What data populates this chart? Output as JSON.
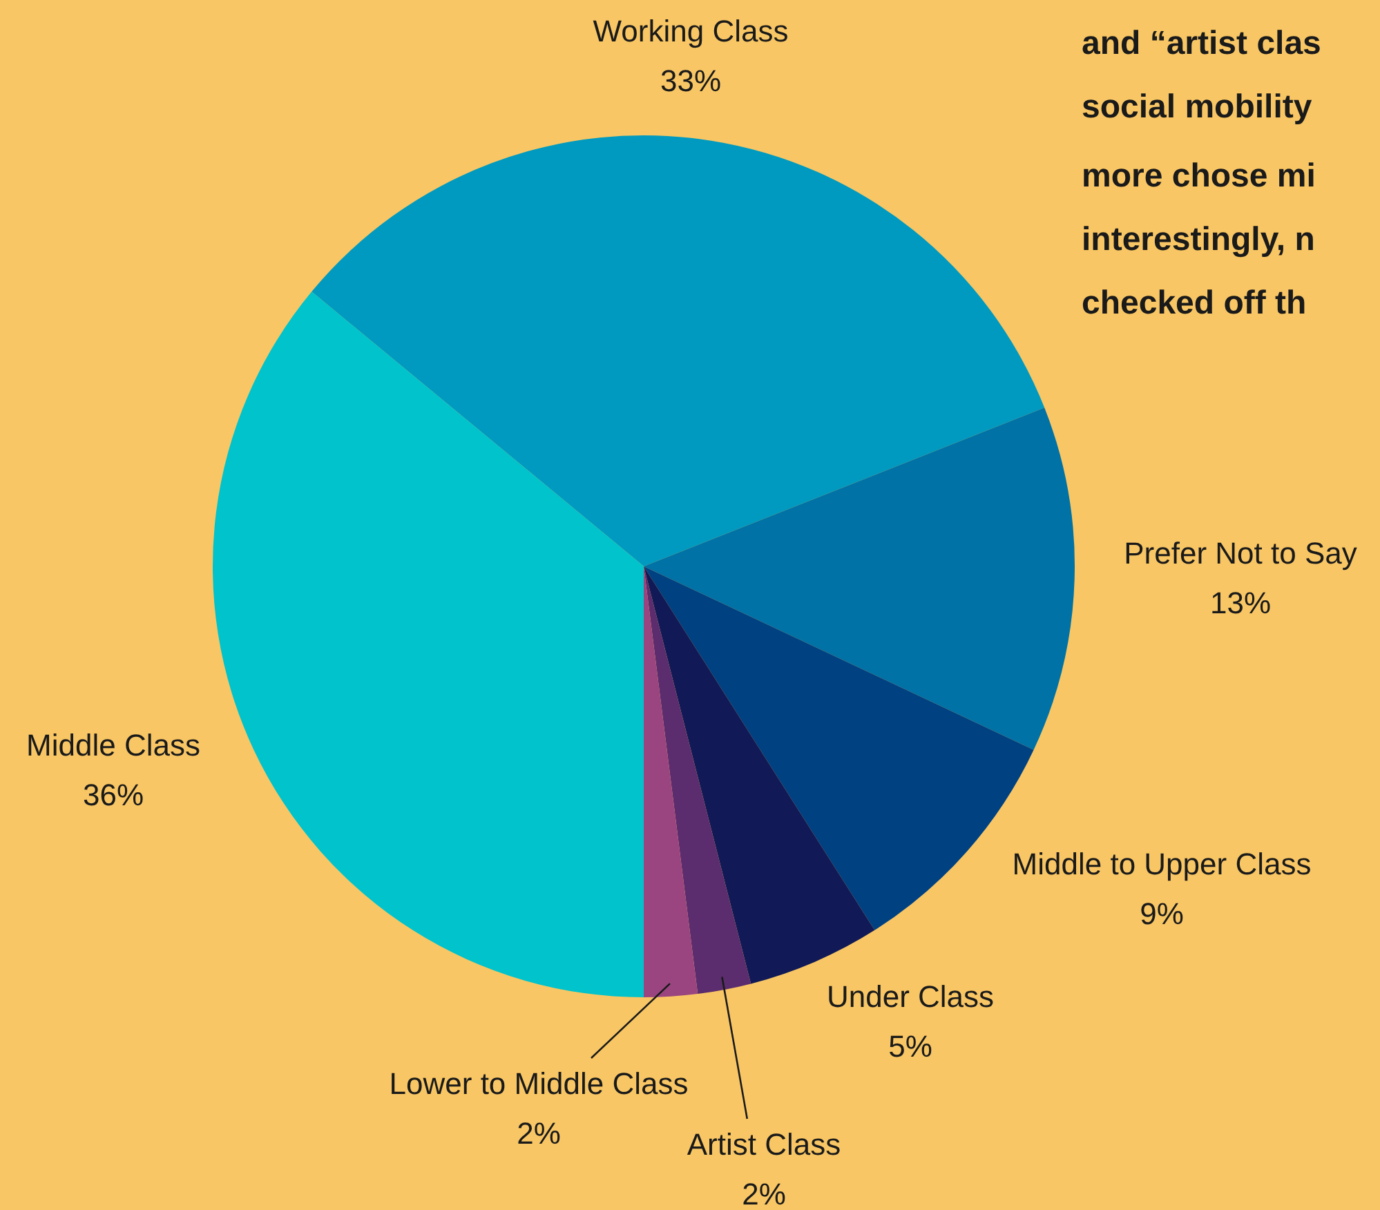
{
  "chart_data": {
    "type": "pie",
    "categories": [
      "Working Class",
      "Prefer Not to Say",
      "Middle to Upper Class",
      "Under Class",
      "Artist Class",
      "Lower to Middle Class",
      "Middle Class"
    ],
    "values": [
      33,
      13,
      9,
      5,
      2,
      2,
      36
    ],
    "value_labels": [
      "33%",
      "13%",
      "9%",
      "5%",
      "2%",
      "2%",
      "36%"
    ],
    "colors": [
      "#009ac0",
      "#0072a6",
      "#004182",
      "#111a56",
      "#5b2d6e",
      "#9b4580",
      "#00c3cc"
    ],
    "annotations": [
      "and “artist clas",
      "social mobility",
      "more chose mi",
      "interestingly, n",
      "checked off th"
    ],
    "legend": false
  }
}
